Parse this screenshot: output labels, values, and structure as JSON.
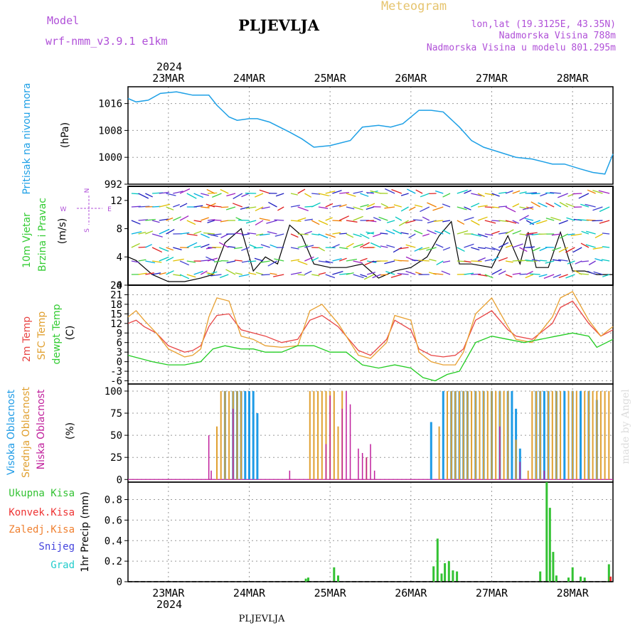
{
  "header": {
    "model_label": "Model",
    "model_name": "wrf-nmm_v3.9.1 e1km",
    "station": "PLJEVLJA",
    "meteogram": "Meteogram",
    "lonlat": "lon,lat (19.3125E, 43.35N)",
    "altitude": "Nadmorska Visina 788m",
    "model_altitude": "Nadmorska Visina u modelu 801.295m"
  },
  "footer": {
    "station": "PLJEVLJA",
    "watermark": "made by Angel"
  },
  "x_axis": {
    "year_label": "2024",
    "days": [
      "23MAR",
      "24MAR",
      "25MAR",
      "26MAR",
      "27MAR",
      "28MAR"
    ],
    "day_positions": [
      0.5,
      1.5,
      2.5,
      3.5,
      4.5,
      5.5
    ],
    "range_days": [
      0,
      6
    ]
  },
  "colors": {
    "pressure": "#1ea0e6",
    "temp2m": "#e84545",
    "sfc": "#e8a030",
    "dewpt": "#22cc22",
    "high_cloud": "#1e9be6",
    "mid_cloud": "#e0a030",
    "low_cloud": "#c0209c",
    "total_precip": "#33c233",
    "conv_precip": "#ee3333",
    "frozen_precip": "#f08030",
    "snow": "#4444dd",
    "hail": "#22cccc"
  },
  "chart_data": [
    {
      "type": "line",
      "panel": "pressure",
      "ylabel_main": "Pritisak na nivou mora",
      "ylabel_unit": "(hPa)",
      "yticks": [
        992,
        1000,
        1008,
        1016
      ],
      "ylim": [
        992,
        1021
      ],
      "series": [
        {
          "key": "pressure",
          "x": [
            0,
            0.1,
            0.25,
            0.4,
            0.6,
            0.8,
            1.0,
            1.1,
            1.25,
            1.35,
            1.5,
            1.6,
            1.75,
            2.0,
            2.15,
            2.3,
            2.5,
            2.75,
            2.9,
            3.1,
            3.25,
            3.4,
            3.6,
            3.75,
            3.9,
            4.1,
            4.25,
            4.4,
            4.6,
            4.8,
            5.0,
            5.25,
            5.4,
            5.6,
            5.75,
            5.9,
            6.0
          ],
          "values": [
            1017.5,
            1016.5,
            1017,
            1019,
            1019.5,
            1018.5,
            1018.5,
            1015.5,
            1012,
            1011,
            1011.5,
            1011.5,
            1010.5,
            1007.5,
            1005.5,
            1003,
            1003.5,
            1005,
            1009,
            1009.5,
            1009,
            1010,
            1014,
            1014,
            1013.5,
            1009,
            1005,
            1003,
            1001.5,
            1000,
            999.5,
            998,
            998,
            996.5,
            995.5,
            995,
            1001
          ]
        }
      ]
    },
    {
      "type": "line",
      "panel": "wind",
      "ylabel_main": "10m Vjetar",
      "ylabel_sub": "Brzina i Pravac",
      "ylabel_unit": "(m/s)",
      "compass": [
        "N",
        "W",
        "E",
        "S"
      ],
      "yticks": [
        0,
        4,
        8,
        12
      ],
      "ylim": [
        0,
        14
      ],
      "series": [
        {
          "key": "wind_speed",
          "x": [
            0,
            0.1,
            0.3,
            0.5,
            0.7,
            0.9,
            1.05,
            1.2,
            1.4,
            1.55,
            1.7,
            1.85,
            2.0,
            2.15,
            2.3,
            2.5,
            2.7,
            2.9,
            3.1,
            3.3,
            3.5,
            3.7,
            3.85,
            4.0,
            4.1,
            4.25,
            4.5,
            4.7,
            4.85,
            4.95,
            5.05,
            5.2,
            5.35,
            5.5,
            5.65,
            5.8,
            6.0
          ],
          "values": [
            4,
            3.5,
            1.5,
            0.5,
            0.5,
            1,
            1.5,
            6,
            8,
            2,
            4,
            3,
            8.5,
            7,
            3,
            2.5,
            2.5,
            3,
            1,
            2,
            2.5,
            4,
            7,
            9,
            3,
            3,
            2.5,
            7,
            3,
            7.5,
            2.5,
            2.5,
            7.5,
            2,
            2,
            1.5,
            1.5
          ]
        }
      ]
    },
    {
      "type": "line",
      "panel": "temperature",
      "ylabel_main": "2m Temp",
      "ylabel_sub": "SFC Temp",
      "ylabel_sub2": "dewpt Temp",
      "ylabel_unit": "(C)",
      "yticks": [
        -6,
        -3,
        0,
        3,
        6,
        9,
        12,
        15,
        18,
        21,
        24
      ],
      "ylim": [
        -7,
        24
      ],
      "series": [
        {
          "key": "temp2m",
          "x": [
            0,
            0.1,
            0.2,
            0.35,
            0.5,
            0.7,
            0.8,
            0.9,
            1.0,
            1.1,
            1.25,
            1.4,
            1.55,
            1.7,
            1.9,
            2.1,
            2.25,
            2.4,
            2.6,
            2.85,
            3.0,
            3.2,
            3.3,
            3.5,
            3.6,
            3.75,
            3.9,
            4.05,
            4.15,
            4.3,
            4.5,
            4.7,
            4.8,
            5.0,
            5.25,
            5.35,
            5.5,
            5.7,
            5.85,
            6.0
          ],
          "values": [
            12,
            13,
            11,
            9,
            5,
            3,
            3.5,
            5,
            11,
            14.5,
            15,
            10,
            9,
            8,
            6,
            7,
            13,
            14.5,
            11,
            3.5,
            2,
            7,
            13,
            10,
            4,
            2,
            1.5,
            2,
            4,
            13,
            16,
            10,
            8,
            7,
            12,
            17,
            19,
            12,
            8,
            10
          ]
        },
        {
          "key": "sfc",
          "x": [
            0,
            0.1,
            0.2,
            0.35,
            0.5,
            0.7,
            0.8,
            0.9,
            1.0,
            1.1,
            1.25,
            1.4,
            1.55,
            1.7,
            1.9,
            2.1,
            2.25,
            2.4,
            2.6,
            2.85,
            3.0,
            3.2,
            3.3,
            3.5,
            3.6,
            3.75,
            3.9,
            4.05,
            4.15,
            4.3,
            4.5,
            4.7,
            4.8,
            5.0,
            5.25,
            5.35,
            5.5,
            5.7,
            5.85,
            6.0
          ],
          "values": [
            14,
            16,
            13,
            9,
            4,
            1.5,
            2,
            4,
            14,
            20,
            19,
            8,
            7,
            5,
            4.5,
            5,
            16,
            18,
            12,
            2,
            1,
            6,
            14.5,
            13,
            3,
            0,
            -1,
            -1,
            3,
            15,
            20,
            11,
            7,
            6,
            14,
            20,
            22,
            13,
            8,
            11
          ]
        },
        {
          "key": "dewpt",
          "x": [
            0,
            0.15,
            0.3,
            0.5,
            0.7,
            0.9,
            1.05,
            1.2,
            1.4,
            1.55,
            1.7,
            1.9,
            2.1,
            2.3,
            2.5,
            2.7,
            2.9,
            3.1,
            3.3,
            3.5,
            3.65,
            3.8,
            3.95,
            4.1,
            4.3,
            4.5,
            4.7,
            4.9,
            5.1,
            5.3,
            5.5,
            5.7,
            5.8,
            6.0
          ],
          "values": [
            2,
            1,
            0,
            -1,
            -1,
            0,
            4,
            5,
            4,
            4,
            3,
            3,
            5,
            5,
            3,
            3,
            -1,
            -2,
            -1,
            -2,
            -5,
            -6,
            -4,
            -3,
            6,
            8,
            7,
            6,
            7,
            8,
            9,
            8,
            4.5,
            7
          ]
        }
      ]
    },
    {
      "type": "bar",
      "panel": "clouds",
      "ylabel_main": "Visoka Oblacnost",
      "ylabel_sub": "Srednja Oblacnost",
      "ylabel_sub2": "Niska Oblacnost",
      "ylabel_unit": "(%)",
      "yticks": [
        0,
        25,
        50,
        75,
        100
      ],
      "ylim": [
        -3,
        108
      ],
      "series": [
        {
          "key": "high_cloud",
          "x": [
            1.2,
            1.3,
            1.35,
            1.4,
            1.45,
            1.5,
            1.55,
            1.6,
            3.75,
            3.9,
            4.0,
            4.05,
            4.1,
            4.15,
            4.2,
            4.3,
            4.4,
            4.5,
            4.6,
            4.7,
            4.75,
            4.8,
            4.85,
            5.05,
            5.1,
            5.15,
            5.2,
            5.3,
            5.4,
            5.5,
            5.6,
            5.7,
            5.8
          ],
          "values": [
            100,
            100,
            100,
            100,
            100,
            100,
            100,
            75,
            65,
            100,
            100,
            100,
            100,
            100,
            100,
            100,
            100,
            100,
            100,
            100,
            100,
            80,
            35,
            100,
            100,
            100,
            100,
            100,
            100,
            100,
            100,
            100,
            90
          ]
        },
        {
          "key": "mid_cloud",
          "x": [
            1.1,
            1.15,
            1.2,
            1.25,
            1.3,
            1.35,
            1.4,
            2.25,
            2.3,
            2.35,
            2.4,
            2.45,
            2.5,
            2.55,
            2.6,
            2.65,
            2.95,
            3.85,
            3.95,
            4.0,
            4.05,
            4.1,
            4.15,
            4.2,
            4.25,
            4.3,
            4.35,
            4.4,
            4.45,
            4.5,
            4.55,
            4.6,
            4.65,
            4.7,
            4.8,
            4.95,
            5.0,
            5.05,
            5.1,
            5.2,
            5.25,
            5.3,
            5.35,
            5.45,
            5.5,
            5.55,
            5.65,
            5.7,
            5.75,
            5.8,
            5.85,
            5.9,
            5.95
          ],
          "values": [
            60,
            100,
            100,
            100,
            100,
            100,
            100,
            100,
            100,
            100,
            100,
            100,
            100,
            100,
            60,
            100,
            25,
            60,
            100,
            100,
            100,
            100,
            100,
            100,
            100,
            100,
            100,
            100,
            100,
            100,
            100,
            100,
            100,
            100,
            45,
            10,
            100,
            100,
            100,
            100,
            100,
            100,
            100,
            100,
            100,
            100,
            100,
            100,
            100,
            100,
            100,
            100,
            100
          ]
        },
        {
          "key": "low_cloud",
          "x": [
            1.0,
            1.03,
            1.3,
            2.0,
            2.45,
            2.5,
            2.65,
            2.7,
            2.75,
            2.85,
            2.9,
            2.95,
            3.0,
            3.05,
            4.6,
            4.85,
            5.15
          ],
          "values": [
            50,
            10,
            80,
            10,
            40,
            95,
            80,
            100,
            85,
            35,
            30,
            25,
            40,
            10,
            60,
            20,
            10
          ]
        }
      ]
    },
    {
      "type": "bar",
      "panel": "precipitation",
      "ylabels": [
        "Ukupna Kisa",
        "Konvek.Kisa",
        "Zaledj.Kisa",
        "Snijeg",
        "Grad"
      ],
      "ylabel_unit": "1hr Precip (mm)",
      "yticks": [
        0,
        0.2,
        0.4,
        0.6,
        0.8
      ],
      "ylim": [
        0,
        0.97
      ],
      "series": [
        {
          "key": "total_precip",
          "x": [
            2.2,
            2.23,
            2.55,
            2.6,
            3.78,
            3.83,
            3.88,
            3.92,
            3.97,
            4.02,
            4.07,
            5.1,
            5.18,
            5.22,
            5.26,
            5.3,
            5.45,
            5.5,
            5.6,
            5.65,
            5.95
          ],
          "values": [
            0.03,
            0.04,
            0.14,
            0.06,
            0.15,
            0.42,
            0.08,
            0.18,
            0.2,
            0.11,
            0.1,
            0.1,
            0.97,
            0.72,
            0.29,
            0.06,
            0.04,
            0.14,
            0.05,
            0.04,
            0.17
          ]
        },
        {
          "key": "conv_precip",
          "x": [
            5.97
          ],
          "values": [
            0.05
          ]
        }
      ]
    }
  ]
}
